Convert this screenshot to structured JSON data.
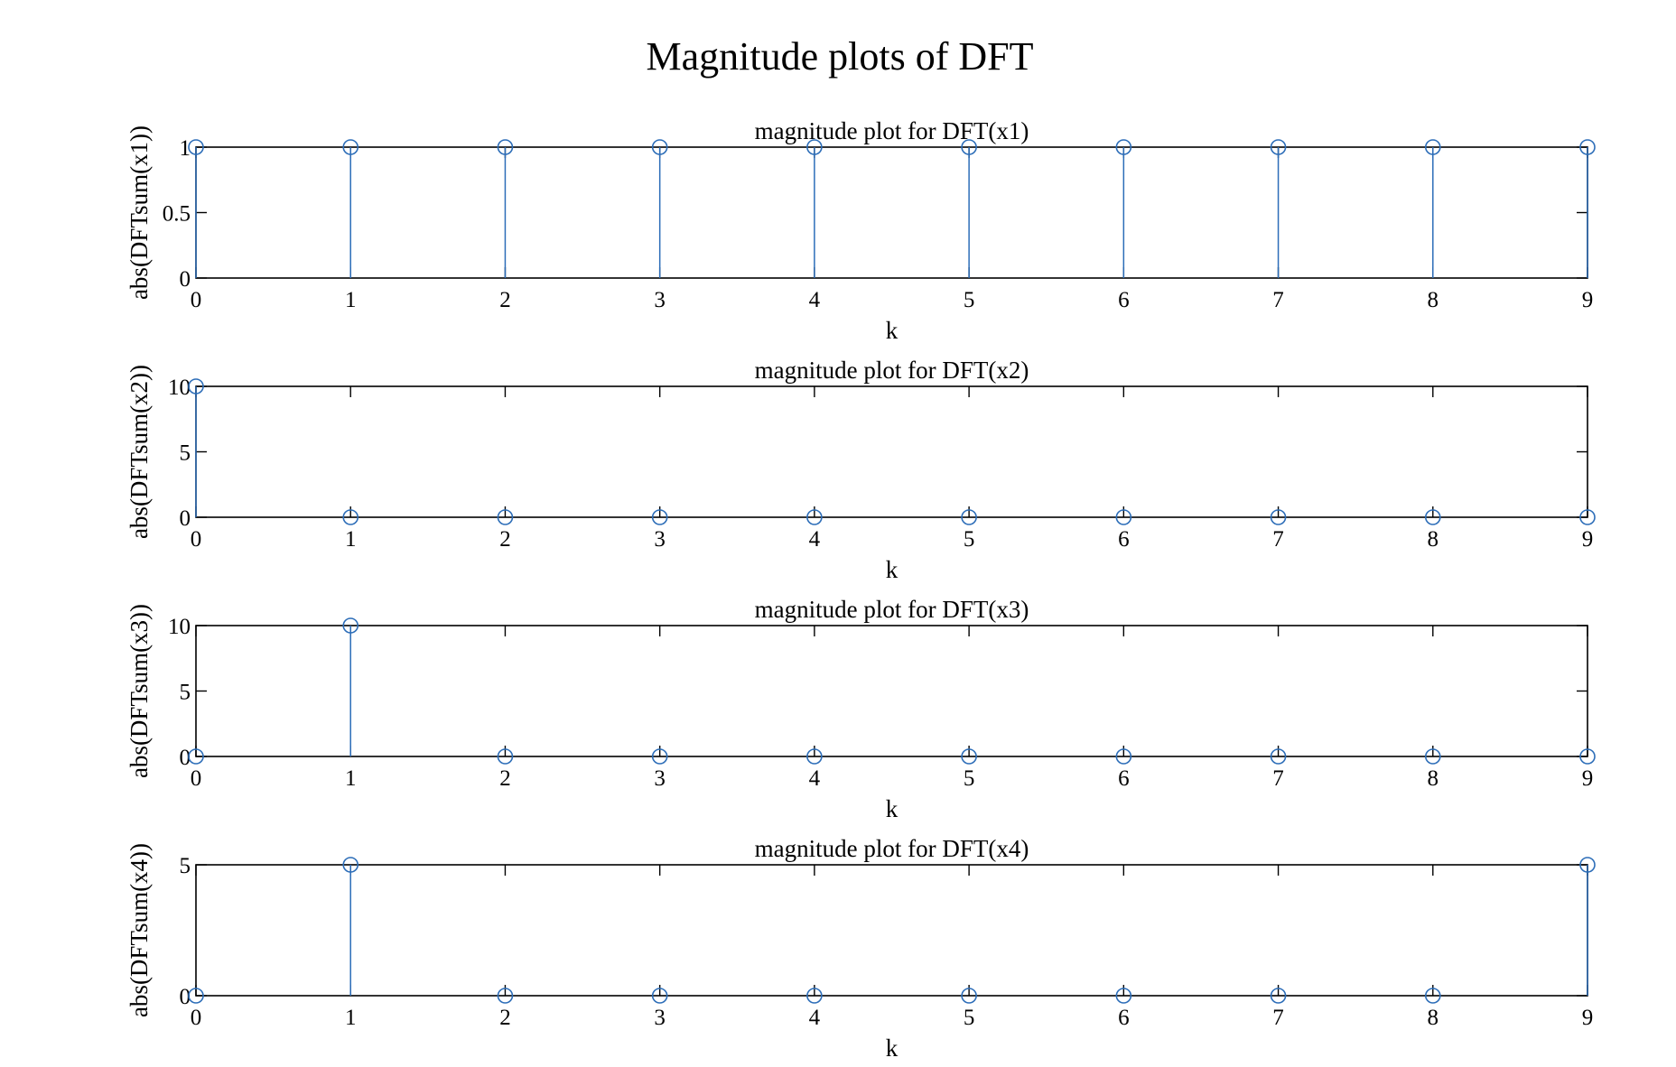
{
  "figure": {
    "suptitle": "Magnitude plots of DFT"
  },
  "style": {
    "stem_color": "#2c6db8",
    "axis_color": "#000000"
  },
  "chart_data": [
    {
      "type": "stem",
      "title": "magnitude plot for DFT(x1)",
      "xlabel": "k",
      "ylabel": "abs(DFTsum(x1))",
      "x": [
        0,
        1,
        2,
        3,
        4,
        5,
        6,
        7,
        8,
        9
      ],
      "values": [
        1,
        1,
        1,
        1,
        1,
        1,
        1,
        1,
        1,
        1
      ],
      "xlim": [
        0,
        9
      ],
      "ylim": [
        0,
        1
      ],
      "xticks": [
        "0",
        "1",
        "2",
        "3",
        "4",
        "5",
        "6",
        "7",
        "8",
        "9"
      ],
      "yticks": [
        0,
        0.5,
        1
      ],
      "yticklabels": [
        "0",
        "0.5",
        "1"
      ],
      "grid": false
    },
    {
      "type": "stem",
      "title": "magnitude plot for DFT(x2)",
      "xlabel": "k",
      "ylabel": "abs(DFTsum(x2))",
      "x": [
        0,
        1,
        2,
        3,
        4,
        5,
        6,
        7,
        8,
        9
      ],
      "values": [
        10,
        0,
        0,
        0,
        0,
        0,
        0,
        0,
        0,
        0
      ],
      "xlim": [
        0,
        9
      ],
      "ylim": [
        0,
        10
      ],
      "xticks": [
        "0",
        "1",
        "2",
        "3",
        "4",
        "5",
        "6",
        "7",
        "8",
        "9"
      ],
      "yticks": [
        0,
        5,
        10
      ],
      "yticklabels": [
        "0",
        "5",
        "10"
      ],
      "grid": false
    },
    {
      "type": "stem",
      "title": "magnitude plot for DFT(x3)",
      "xlabel": "k",
      "ylabel": "abs(DFTsum(x3))",
      "x": [
        0,
        1,
        2,
        3,
        4,
        5,
        6,
        7,
        8,
        9
      ],
      "values": [
        0,
        10,
        0,
        0,
        0,
        0,
        0,
        0,
        0,
        0
      ],
      "xlim": [
        0,
        9
      ],
      "ylim": [
        0,
        10
      ],
      "xticks": [
        "0",
        "1",
        "2",
        "3",
        "4",
        "5",
        "6",
        "7",
        "8",
        "9"
      ],
      "yticks": [
        0,
        5,
        10
      ],
      "yticklabels": [
        "0",
        "5",
        "10"
      ],
      "grid": false
    },
    {
      "type": "stem",
      "title": "magnitude plot for DFT(x4)",
      "xlabel": "k",
      "ylabel": "abs(DFTsum(x4))",
      "x": [
        0,
        1,
        2,
        3,
        4,
        5,
        6,
        7,
        8,
        9
      ],
      "values": [
        0,
        5,
        0,
        0,
        0,
        0,
        0,
        0,
        0,
        5
      ],
      "xlim": [
        0,
        9
      ],
      "ylim": [
        0,
        5
      ],
      "xticks": [
        "0",
        "1",
        "2",
        "3",
        "4",
        "5",
        "6",
        "7",
        "8",
        "9"
      ],
      "yticks": [
        0,
        5
      ],
      "yticklabels": [
        "0",
        "5"
      ],
      "grid": false
    }
  ]
}
